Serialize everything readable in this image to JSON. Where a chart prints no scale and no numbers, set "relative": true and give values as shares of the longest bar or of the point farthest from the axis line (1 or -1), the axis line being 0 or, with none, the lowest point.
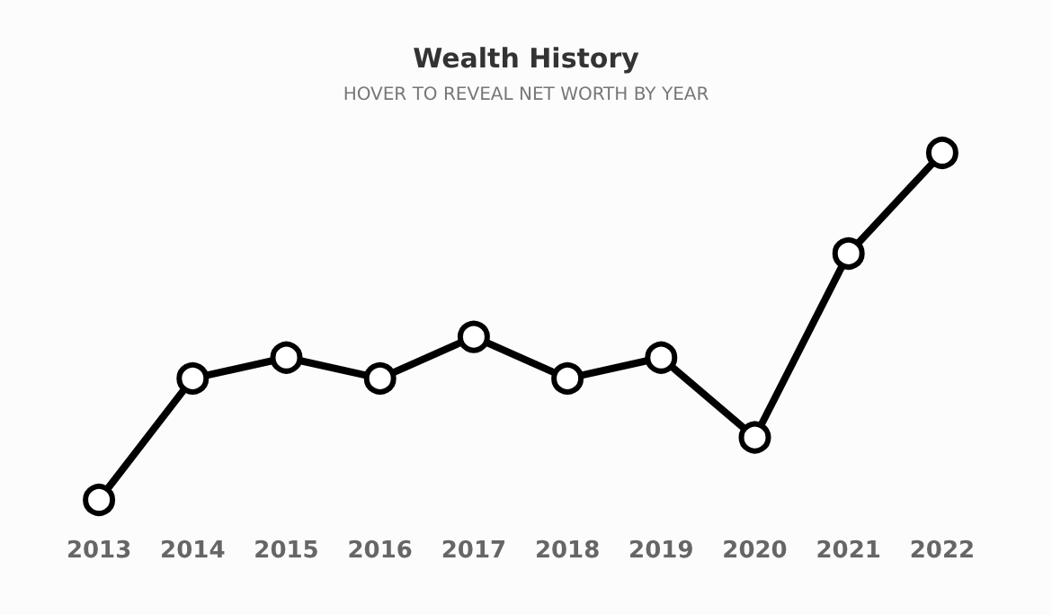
{
  "chart_data": {
    "type": "line",
    "title": "Wealth History",
    "subtitle": "HOVER TO REVEAL NET WORTH BY YEAR",
    "categories": [
      "2013",
      "2014",
      "2015",
      "2016",
      "2017",
      "2018",
      "2019",
      "2020",
      "2021",
      "2022"
    ],
    "relative": true,
    "marker": "circle",
    "line_style": "solid",
    "series": [
      {
        "color": "#000000",
        "values": [
          0,
          0.35,
          0.41,
          0.35,
          0.47,
          0.35,
          0.41,
          0.18,
          0.71,
          1
        ]
      }
    ]
  }
}
